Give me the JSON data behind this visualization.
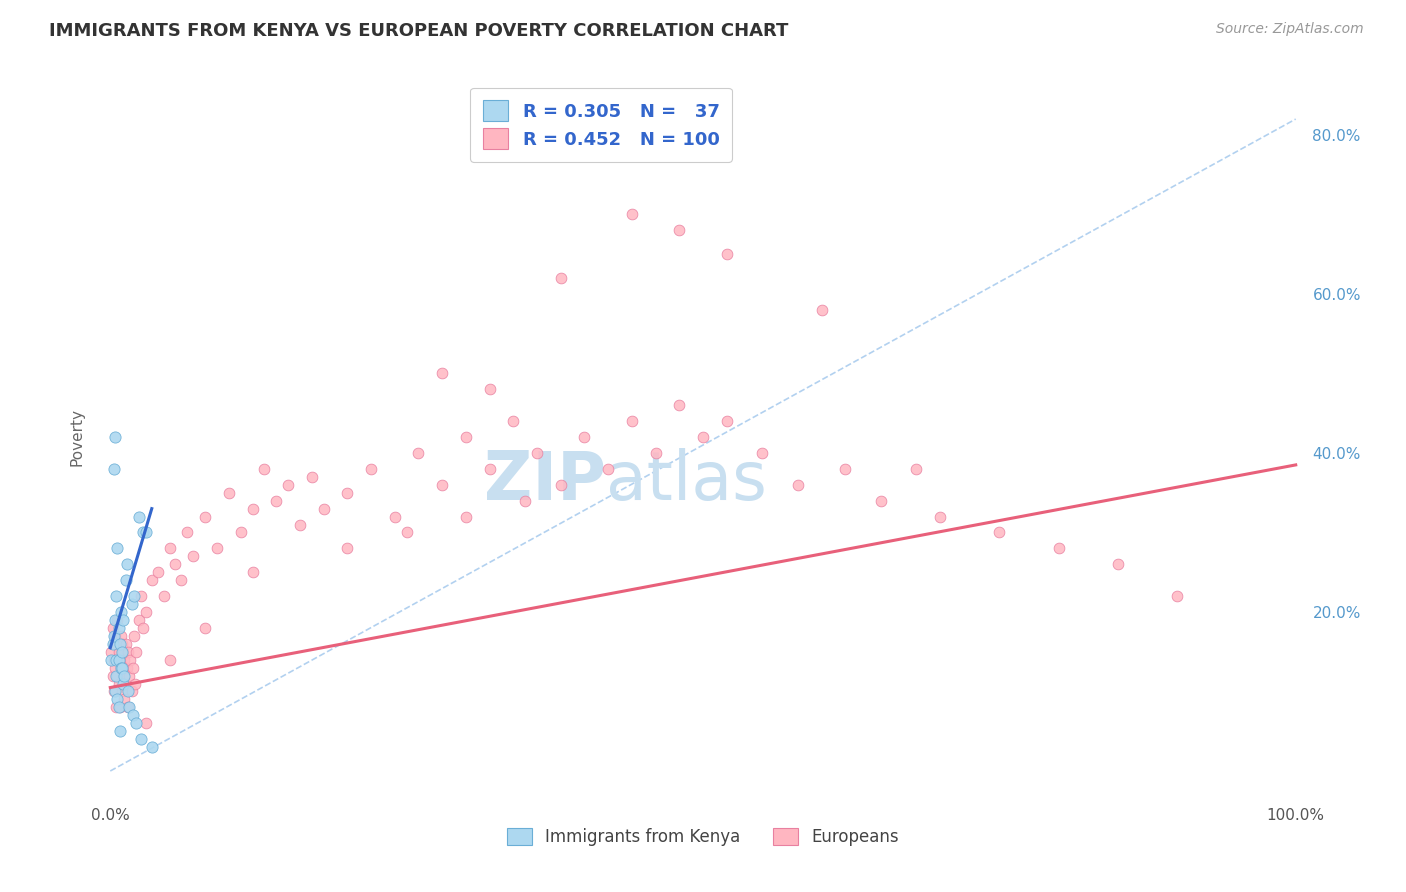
{
  "title": "IMMIGRANTS FROM KENYA VS EUROPEAN POVERTY CORRELATION CHART",
  "source_text": "Source: ZipAtlas.com",
  "ylabel": "Poverty",
  "xlim": [
    -0.01,
    1.01
  ],
  "ylim": [
    -0.04,
    0.88
  ],
  "kenya_R": 0.305,
  "kenya_N": 37,
  "european_R": 0.452,
  "european_N": 100,
  "kenya_color": "#ADD8F0",
  "kenya_edge_color": "#6AAED6",
  "kenya_line_color": "#3366CC",
  "european_color": "#FFB6C1",
  "european_edge_color": "#E880A0",
  "european_line_color": "#E8607A",
  "background_color": "#FFFFFF",
  "grid_color": "#DDDDDD",
  "title_color": "#333333",
  "watermark_color": "#C8DFF0",
  "watermark_text": "ZIPatlas",
  "ref_line_color": "#AACCEE",
  "y_tick_vals_right": [
    0.0,
    0.2,
    0.4,
    0.6,
    0.8
  ],
  "y_tick_labels_right": [
    "",
    "20.0%",
    "40.0%",
    "60.0%",
    "80.0%"
  ],
  "kenya_scatter_x": [
    0.001,
    0.002,
    0.003,
    0.003,
    0.004,
    0.004,
    0.004,
    0.005,
    0.005,
    0.005,
    0.006,
    0.006,
    0.007,
    0.007,
    0.007,
    0.008,
    0.008,
    0.009,
    0.009,
    0.01,
    0.01,
    0.011,
    0.011,
    0.012,
    0.013,
    0.014,
    0.015,
    0.016,
    0.018,
    0.019,
    0.02,
    0.022,
    0.024,
    0.026,
    0.028,
    0.03,
    0.035
  ],
  "kenya_scatter_y": [
    0.14,
    0.16,
    0.17,
    0.38,
    0.42,
    0.19,
    0.1,
    0.22,
    0.14,
    0.12,
    0.09,
    0.28,
    0.18,
    0.14,
    0.08,
    0.16,
    0.05,
    0.2,
    0.13,
    0.15,
    0.13,
    0.19,
    0.11,
    0.12,
    0.24,
    0.26,
    0.1,
    0.08,
    0.21,
    0.07,
    0.22,
    0.06,
    0.32,
    0.04,
    0.3,
    0.3,
    0.03
  ],
  "euro_scatter_x": [
    0.001,
    0.002,
    0.002,
    0.003,
    0.003,
    0.004,
    0.004,
    0.005,
    0.005,
    0.006,
    0.006,
    0.007,
    0.007,
    0.008,
    0.008,
    0.009,
    0.009,
    0.01,
    0.01,
    0.011,
    0.011,
    0.012,
    0.012,
    0.013,
    0.013,
    0.014,
    0.015,
    0.015,
    0.016,
    0.017,
    0.018,
    0.019,
    0.02,
    0.021,
    0.022,
    0.024,
    0.026,
    0.028,
    0.03,
    0.035,
    0.04,
    0.045,
    0.05,
    0.055,
    0.06,
    0.065,
    0.07,
    0.08,
    0.09,
    0.1,
    0.11,
    0.12,
    0.13,
    0.14,
    0.15,
    0.16,
    0.17,
    0.18,
    0.2,
    0.22,
    0.24,
    0.26,
    0.28,
    0.3,
    0.32,
    0.34,
    0.36,
    0.38,
    0.4,
    0.42,
    0.44,
    0.46,
    0.48,
    0.5,
    0.52,
    0.55,
    0.58,
    0.62,
    0.65,
    0.7,
    0.75,
    0.8,
    0.85,
    0.9,
    0.44,
    0.48,
    0.52,
    0.28,
    0.32,
    0.38,
    0.12,
    0.08,
    0.05,
    0.03,
    0.2,
    0.25,
    0.3,
    0.35,
    0.6,
    0.68
  ],
  "euro_scatter_y": [
    0.15,
    0.12,
    0.18,
    0.14,
    0.1,
    0.17,
    0.13,
    0.16,
    0.08,
    0.12,
    0.19,
    0.15,
    0.11,
    0.14,
    0.08,
    0.17,
    0.13,
    0.16,
    0.1,
    0.15,
    0.12,
    0.14,
    0.09,
    0.16,
    0.11,
    0.13,
    0.15,
    0.08,
    0.12,
    0.14,
    0.1,
    0.13,
    0.17,
    0.11,
    0.15,
    0.19,
    0.22,
    0.18,
    0.2,
    0.24,
    0.25,
    0.22,
    0.28,
    0.26,
    0.24,
    0.3,
    0.27,
    0.32,
    0.28,
    0.35,
    0.3,
    0.33,
    0.38,
    0.34,
    0.36,
    0.31,
    0.37,
    0.33,
    0.35,
    0.38,
    0.32,
    0.4,
    0.36,
    0.42,
    0.38,
    0.44,
    0.4,
    0.36,
    0.42,
    0.38,
    0.44,
    0.4,
    0.46,
    0.42,
    0.44,
    0.4,
    0.36,
    0.38,
    0.34,
    0.32,
    0.3,
    0.28,
    0.26,
    0.22,
    0.7,
    0.68,
    0.65,
    0.5,
    0.48,
    0.62,
    0.25,
    0.18,
    0.14,
    0.06,
    0.28,
    0.3,
    0.32,
    0.34,
    0.58,
    0.38
  ]
}
